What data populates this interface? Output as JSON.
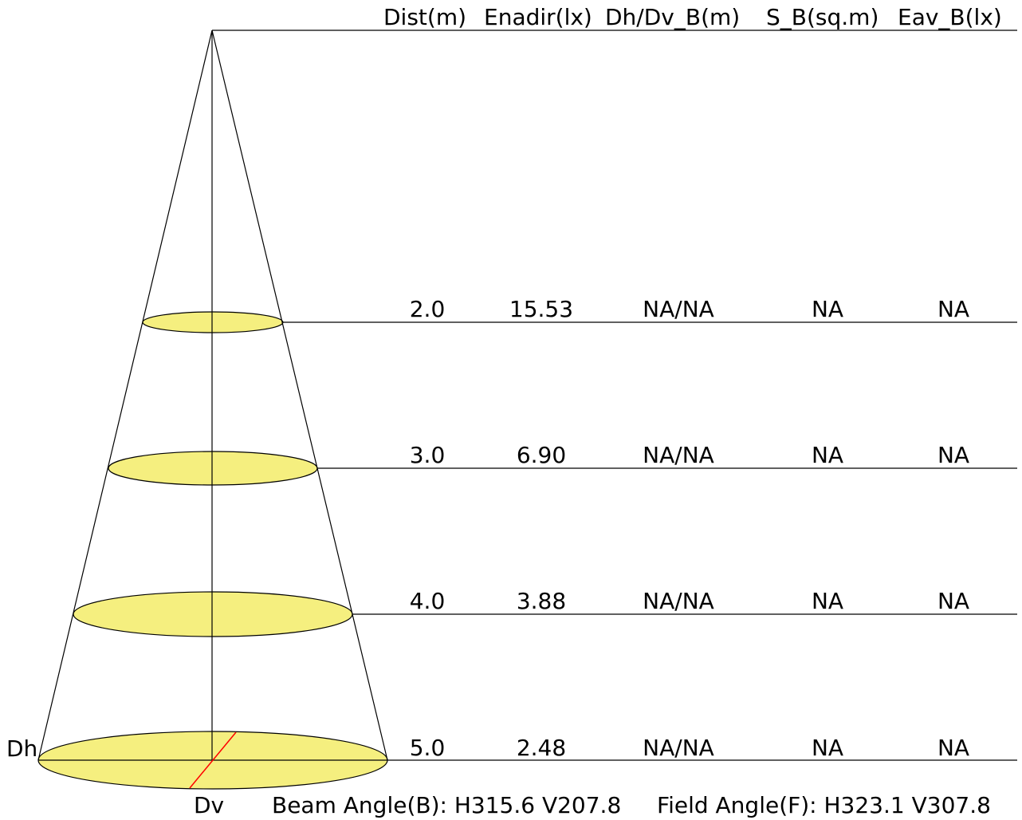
{
  "headers": {
    "dist": "Dist(m)",
    "enadir": "Enadir(lx)",
    "dhdv": "Dh/Dv_B(m)",
    "sb": "S_B(sq.m)",
    "eav": "Eav_B(lx)"
  },
  "rows": [
    {
      "dist": "2.0",
      "enadir": "15.53",
      "dhdv": "NA/NA",
      "sb": "NA",
      "eav": "NA"
    },
    {
      "dist": "3.0",
      "enadir": "6.90",
      "dhdv": "NA/NA",
      "sb": "NA",
      "eav": "NA"
    },
    {
      "dist": "4.0",
      "enadir": "3.88",
      "dhdv": "NA/NA",
      "sb": "NA",
      "eav": "NA"
    },
    {
      "dist": "5.0",
      "enadir": "2.48",
      "dhdv": "NA/NA",
      "sb": "NA",
      "eav": "NA"
    }
  ],
  "labels": {
    "dh": "Dh",
    "dv": "Dv",
    "beam_angle": "Beam Angle(B): H315.6 V207.8",
    "field_angle": "Field Angle(F): H323.1 V307.8"
  },
  "colors": {
    "ellipse_fill": "#f5ef7f",
    "dv_line": "#ff0000",
    "line": "#000000"
  }
}
